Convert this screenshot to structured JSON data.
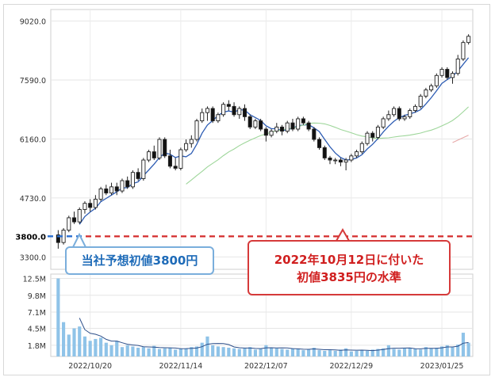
{
  "chart_data": {
    "type": "candlestick",
    "price_axis": {
      "ticks": [
        3300,
        4730,
        6160,
        7590,
        9020
      ],
      "ylim": [
        3000,
        9300
      ]
    },
    "volume_axis": {
      "ticks": [
        "1.8M",
        "4.5M",
        "7.1M",
        "9.8M",
        "12.5M"
      ],
      "tick_values": [
        1.8,
        4.5,
        7.1,
        9.8,
        12.5
      ],
      "ylim": [
        0,
        13.2
      ]
    },
    "x_ticks": [
      {
        "label": "2022/10/20",
        "index": 6
      },
      {
        "label": "2022/11/14",
        "index": 23
      },
      {
        "label": "2022/12/07",
        "index": 39
      },
      {
        "label": "2022/12/29",
        "index": 55
      },
      {
        "label": "2023/01/25",
        "index": 72
      }
    ],
    "reference_level": {
      "label": "3800.0",
      "value": 3800,
      "style": "dashed-red"
    },
    "annotations": [
      {
        "text": "当社予想初値3800円"
      },
      {
        "line1": "2022年10月12日に付いた",
        "line2": "初値3835円の水準"
      }
    ],
    "candles": [
      [
        3835,
        3650,
        3950,
        3500
      ],
      [
        3650,
        3950,
        4000,
        3600
      ],
      [
        3950,
        4250,
        4300,
        3900
      ],
      [
        4250,
        4150,
        4400,
        4100
      ],
      [
        4150,
        4450,
        4500,
        4100
      ],
      [
        4450,
        4600,
        4650,
        4350
      ],
      [
        4600,
        4500,
        4700,
        4400
      ],
      [
        4500,
        4700,
        4800,
        4450
      ],
      [
        4700,
        4950,
        5000,
        4650
      ],
      [
        4950,
        4850,
        5050,
        4800
      ],
      [
        4850,
        5000,
        5100,
        4800
      ],
      [
        5000,
        4900,
        5100,
        4800
      ],
      [
        4900,
        5150,
        5200,
        4850
      ],
      [
        5150,
        5000,
        5250,
        4950
      ],
      [
        5000,
        5350,
        5400,
        4950
      ],
      [
        5350,
        5200,
        5450,
        5150
      ],
      [
        5200,
        5650,
        5700,
        5150
      ],
      [
        5650,
        5850,
        5900,
        5600
      ],
      [
        5850,
        5700,
        6000,
        5650
      ],
      [
        5700,
        6150,
        6200,
        5650
      ],
      [
        6150,
        5750,
        6200,
        5700
      ],
      [
        5750,
        5500,
        5900,
        5450
      ],
      [
        5500,
        5450,
        5700,
        5400
      ],
      [
        5450,
        5900,
        5950,
        5400
      ],
      [
        5900,
        6050,
        6150,
        5850
      ],
      [
        6050,
        6150,
        6250,
        5950
      ],
      [
        6150,
        6600,
        6650,
        6100
      ],
      [
        6600,
        6800,
        6900,
        6550
      ],
      [
        6800,
        6900,
        6950,
        6600
      ],
      [
        6900,
        6600,
        6950,
        6550
      ],
      [
        6600,
        6750,
        6800,
        6550
      ],
      [
        6750,
        7000,
        7050,
        6700
      ],
      [
        7000,
        6950,
        7100,
        6850
      ],
      [
        6950,
        6750,
        7050,
        6700
      ],
      [
        6750,
        6900,
        6950,
        6650
      ],
      [
        6900,
        6700,
        7000,
        6600
      ],
      [
        6700,
        6450,
        6750,
        6400
      ],
      [
        6450,
        6600,
        6650,
        6400
      ],
      [
        6600,
        6400,
        6650,
        6350
      ],
      [
        6400,
        6250,
        6450,
        6100
      ],
      [
        6250,
        6350,
        6400,
        6200
      ],
      [
        6350,
        6450,
        6550,
        6300
      ],
      [
        6450,
        6350,
        6500,
        6250
      ],
      [
        6350,
        6550,
        6600,
        6300
      ],
      [
        6550,
        6400,
        6650,
        6350
      ],
      [
        6400,
        6650,
        6700,
        6350
      ],
      [
        6650,
        6550,
        6700,
        6500
      ],
      [
        6550,
        6400,
        6600,
        6350
      ],
      [
        6400,
        6150,
        6450,
        6100
      ],
      [
        6150,
        5950,
        6200,
        5900
      ],
      [
        5950,
        5700,
        6000,
        5650
      ],
      [
        5700,
        5650,
        5750,
        5550
      ],
      [
        5650,
        5650,
        5700,
        5550
      ],
      [
        5650,
        5600,
        5700,
        5500
      ],
      [
        5600,
        5650,
        5700,
        5400
      ],
      [
        5650,
        5750,
        5800,
        5600
      ],
      [
        5750,
        5850,
        5900,
        5700
      ],
      [
        5850,
        6050,
        6100,
        5800
      ],
      [
        6050,
        6300,
        6350,
        6000
      ],
      [
        6300,
        6200,
        6350,
        6100
      ],
      [
        6200,
        6450,
        6500,
        6150
      ],
      [
        6450,
        6650,
        6700,
        6400
      ],
      [
        6650,
        6750,
        6850,
        6600
      ],
      [
        6750,
        6900,
        6950,
        6700
      ],
      [
        6900,
        6650,
        6950,
        6600
      ],
      [
        6650,
        6700,
        6750,
        6600
      ],
      [
        6700,
        6850,
        6900,
        6650
      ],
      [
        6850,
        6950,
        7000,
        6800
      ],
      [
        6950,
        7200,
        7250,
        6900
      ],
      [
        7200,
        7350,
        7400,
        7150
      ],
      [
        7350,
        7450,
        7500,
        7300
      ],
      [
        7450,
        7700,
        7750,
        7400
      ],
      [
        7700,
        7850,
        7900,
        7650
      ],
      [
        7850,
        7650,
        7900,
        7600
      ],
      [
        7650,
        7750,
        7800,
        7500
      ],
      [
        7750,
        8100,
        8200,
        7700
      ],
      [
        8100,
        8500,
        8550,
        8050
      ],
      [
        8500,
        8650,
        8700,
        8450
      ]
    ],
    "volumes": [
      12.5,
      5.5,
      3.5,
      4.5,
      4.8,
      3.2,
      2.5,
      2.8,
      3.0,
      2.2,
      1.8,
      2.5,
      1.5,
      1.8,
      1.6,
      1.4,
      1.5,
      1.3,
      1.7,
      1.2,
      1.3,
      1.4,
      1.1,
      1.2,
      1.3,
      1.5,
      1.6,
      2.2,
      3.2,
      1.8,
      1.6,
      1.5,
      1.4,
      1.3,
      1.2,
      1.3,
      1.5,
      1.1,
      1.2,
      1.8,
      1.4,
      1.3,
      1.2,
      1.1,
      1.3,
      1.2,
      1.0,
      1.1,
      1.4,
      1.0,
      0.9,
      1.0,
      0.9,
      1.1,
      1.3,
      0.8,
      0.9,
      1.0,
      0.9,
      1.1,
      1.2,
      1.3,
      1.8,
      1.2,
      1.1,
      1.3,
      1.4,
      1.2,
      1.1,
      1.5,
      1.3,
      1.4,
      1.6,
      1.8,
      1.5,
      1.9,
      3.8,
      2.2
    ]
  }
}
